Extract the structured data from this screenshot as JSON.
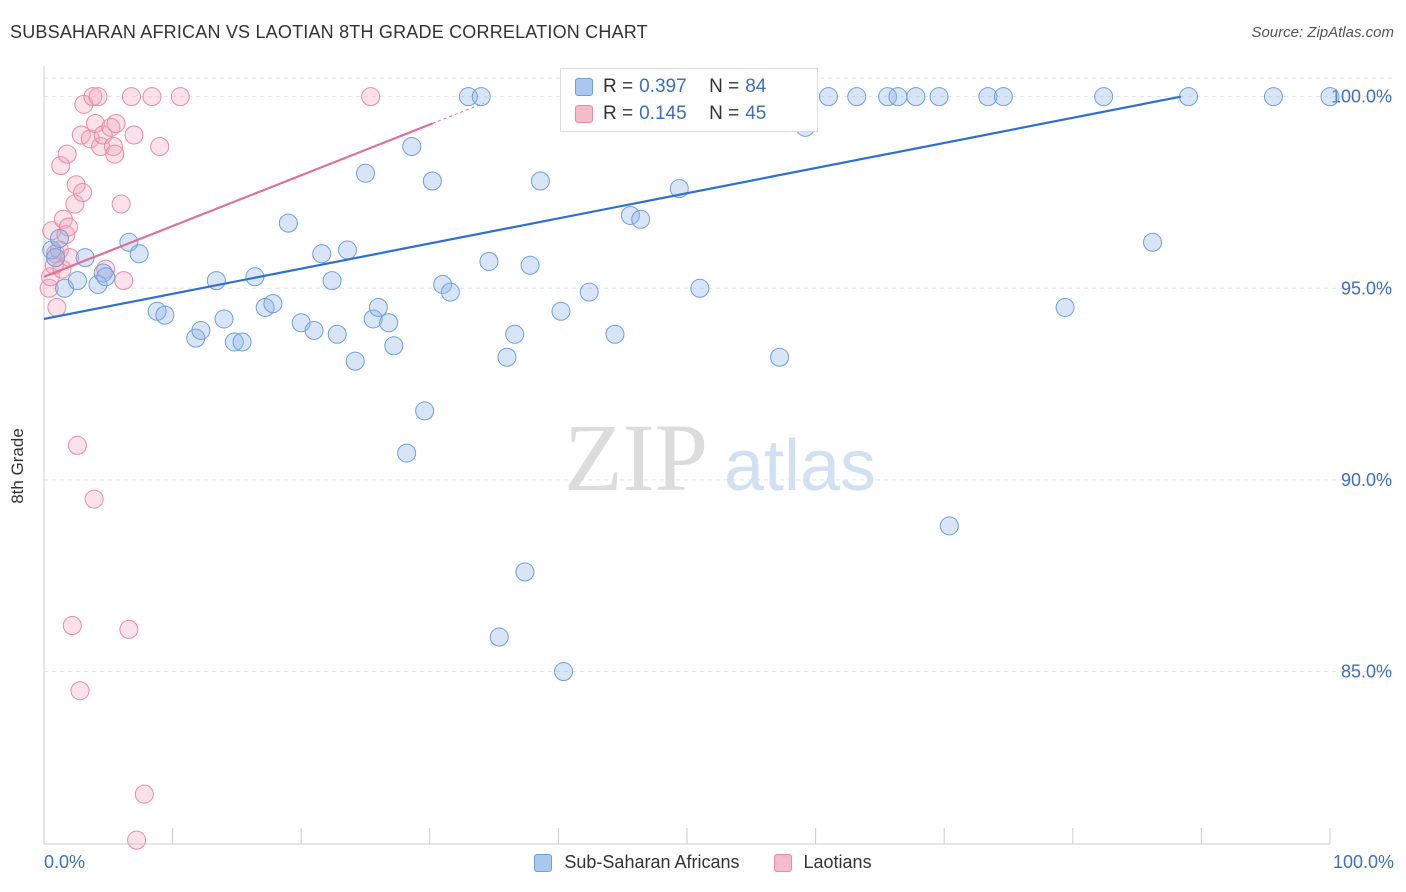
{
  "title": "SUBSAHARAN AFRICAN VS LAOTIAN 8TH GRADE CORRELATION CHART",
  "source": "Source: ZipAtlas.com",
  "watermark": {
    "part1": "ZIP",
    "part2": "atlas"
  },
  "stats": [
    {
      "r_label": "R =",
      "r_value": "0.397",
      "n_label": "N =",
      "n_value": "84",
      "color": "#a9c7ef",
      "border": "#6f9fd8"
    },
    {
      "r_label": "R =",
      "r_value": "0.145",
      "n_label": "N =",
      "n_value": "45",
      "color": "#f7bccb",
      "border": "#e88aa5"
    }
  ],
  "legend": [
    {
      "label": "Sub-Saharan Africans",
      "color": "#a9c7ef",
      "border": "#6f9fd8"
    },
    {
      "label": "Laotians",
      "color": "#f7bccb",
      "border": "#e88aa5"
    }
  ],
  "colors": {
    "blue_line": "#2e6fd1",
    "pink_line": "#e07099",
    "blue_fill": "rgba(140,180,232,0.35)",
    "blue_stroke": "#6f9fd8",
    "pink_fill": "rgba(244,170,192,0.35)",
    "pink_stroke": "#e88aa5",
    "grid": "#e3e3e3",
    "tick_label": "#3a6fc4"
  },
  "chart_data": {
    "type": "scatter",
    "title": "SUBSAHARAN AFRICAN VS LAOTIAN 8TH GRADE CORRELATION CHART",
    "xlabel": "",
    "ylabel": "8th Grade",
    "xlim": [
      0,
      100
    ],
    "ylim": [
      80.5,
      100.8
    ],
    "x_tick_labels": [
      "0.0%",
      "100.0%"
    ],
    "y_ticks": [
      85,
      90,
      95,
      100
    ],
    "y_tick_labels": [
      "85.0%",
      "90.0%",
      "95.0%",
      "100.0%"
    ],
    "grid": "horizontal dashed",
    "legend_position": "bottom-center",
    "series": [
      {
        "name": "Sub-Saharan Africans",
        "R": 0.397,
        "N": 84,
        "trend": {
          "x": [
            0,
            88.4
          ],
          "y": [
            94.2,
            100.0
          ]
        },
        "points": [
          [
            0.6,
            96.0
          ],
          [
            0.9,
            95.8
          ],
          [
            1.2,
            96.3
          ],
          [
            1.6,
            95.0
          ],
          [
            2.6,
            95.2
          ],
          [
            3.2,
            95.8
          ],
          [
            4.2,
            95.1
          ],
          [
            4.6,
            95.4
          ],
          [
            4.8,
            95.3
          ],
          [
            6.6,
            96.2
          ],
          [
            7.4,
            95.9
          ],
          [
            8.8,
            94.4
          ],
          [
            9.4,
            94.3
          ],
          [
            11.8,
            93.7
          ],
          [
            12.2,
            93.9
          ],
          [
            13.4,
            95.2
          ],
          [
            14.0,
            94.2
          ],
          [
            14.8,
            93.6
          ],
          [
            15.4,
            93.6
          ],
          [
            16.4,
            95.3
          ],
          [
            17.2,
            94.5
          ],
          [
            17.8,
            94.6
          ],
          [
            19.0,
            96.7
          ],
          [
            20.0,
            94.1
          ],
          [
            21.0,
            93.9
          ],
          [
            21.6,
            95.9
          ],
          [
            22.4,
            95.2
          ],
          [
            22.8,
            93.8
          ],
          [
            23.6,
            96.0
          ],
          [
            24.2,
            93.1
          ],
          [
            25.0,
            98.0
          ],
          [
            25.6,
            94.2
          ],
          [
            26.0,
            94.5
          ],
          [
            26.8,
            94.1
          ],
          [
            27.2,
            93.5
          ],
          [
            28.2,
            90.7
          ],
          [
            28.6,
            98.7
          ],
          [
            29.6,
            91.8
          ],
          [
            30.2,
            97.8
          ],
          [
            31.0,
            95.1
          ],
          [
            31.6,
            94.9
          ],
          [
            33.0,
            100.0
          ],
          [
            34.0,
            100.0
          ],
          [
            34.6,
            95.7
          ],
          [
            35.4,
            85.9
          ],
          [
            36.0,
            93.2
          ],
          [
            36.6,
            93.8
          ],
          [
            37.4,
            87.6
          ],
          [
            37.8,
            95.6
          ],
          [
            38.6,
            97.8
          ],
          [
            40.2,
            94.4
          ],
          [
            40.4,
            85.0
          ],
          [
            41.6,
            100.0
          ],
          [
            42.4,
            94.9
          ],
          [
            43.2,
            99.6
          ],
          [
            44.4,
            93.8
          ],
          [
            45.6,
            96.9
          ],
          [
            46.4,
            96.8
          ],
          [
            47.8,
            100.0
          ],
          [
            48.4,
            100.0
          ],
          [
            49.0,
            100.0
          ],
          [
            49.4,
            97.6
          ],
          [
            50.6,
            100.0
          ],
          [
            51.0,
            95.0
          ],
          [
            52.0,
            100.0
          ],
          [
            56.0,
            100.0
          ],
          [
            57.2,
            93.2
          ],
          [
            58.0,
            100.0
          ],
          [
            59.2,
            99.2
          ],
          [
            61.0,
            100.0
          ],
          [
            63.2,
            100.0
          ],
          [
            65.6,
            100.0
          ],
          [
            66.4,
            100.0
          ],
          [
            67.8,
            100.0
          ],
          [
            69.6,
            100.0
          ],
          [
            70.4,
            88.8
          ],
          [
            73.4,
            100.0
          ],
          [
            74.6,
            100.0
          ],
          [
            79.4,
            94.5
          ],
          [
            82.4,
            100.0
          ],
          [
            86.2,
            96.2
          ],
          [
            89.0,
            100.0
          ],
          [
            95.6,
            100.0
          ],
          [
            100.0,
            100.0
          ]
        ]
      },
      {
        "name": "Laotians",
        "R": 0.145,
        "N": 45,
        "trend": {
          "x": [
            0,
            30.2
          ],
          "y": [
            95.3,
            99.3
          ]
        },
        "points": [
          [
            0.4,
            95.0
          ],
          [
            0.5,
            95.3
          ],
          [
            0.6,
            96.5
          ],
          [
            0.8,
            95.6
          ],
          [
            0.9,
            95.9
          ],
          [
            1.0,
            94.5
          ],
          [
            1.2,
            96.0
          ],
          [
            1.3,
            98.2
          ],
          [
            1.4,
            95.5
          ],
          [
            1.5,
            96.8
          ],
          [
            1.7,
            96.4
          ],
          [
            1.8,
            98.5
          ],
          [
            1.9,
            96.6
          ],
          [
            2.0,
            95.8
          ],
          [
            2.2,
            86.2
          ],
          [
            2.4,
            97.2
          ],
          [
            2.5,
            97.7
          ],
          [
            2.6,
            90.9
          ],
          [
            2.8,
            84.5
          ],
          [
            2.9,
            99.0
          ],
          [
            3.0,
            97.5
          ],
          [
            3.1,
            99.8
          ],
          [
            3.6,
            98.9
          ],
          [
            3.8,
            100.0
          ],
          [
            3.9,
            89.5
          ],
          [
            4.0,
            99.3
          ],
          [
            4.2,
            100.0
          ],
          [
            4.4,
            98.7
          ],
          [
            4.6,
            99.0
          ],
          [
            4.8,
            95.5
          ],
          [
            5.2,
            99.2
          ],
          [
            5.4,
            98.7
          ],
          [
            5.5,
            98.5
          ],
          [
            5.6,
            99.3
          ],
          [
            6.0,
            97.2
          ],
          [
            6.2,
            95.2
          ],
          [
            6.6,
            86.1
          ],
          [
            6.8,
            100.0
          ],
          [
            7.0,
            99.0
          ],
          [
            7.2,
            80.6
          ],
          [
            7.8,
            81.8
          ],
          [
            8.4,
            100.0
          ],
          [
            9.0,
            98.7
          ],
          [
            10.6,
            100.0
          ],
          [
            25.4,
            100.0
          ]
        ]
      }
    ]
  }
}
